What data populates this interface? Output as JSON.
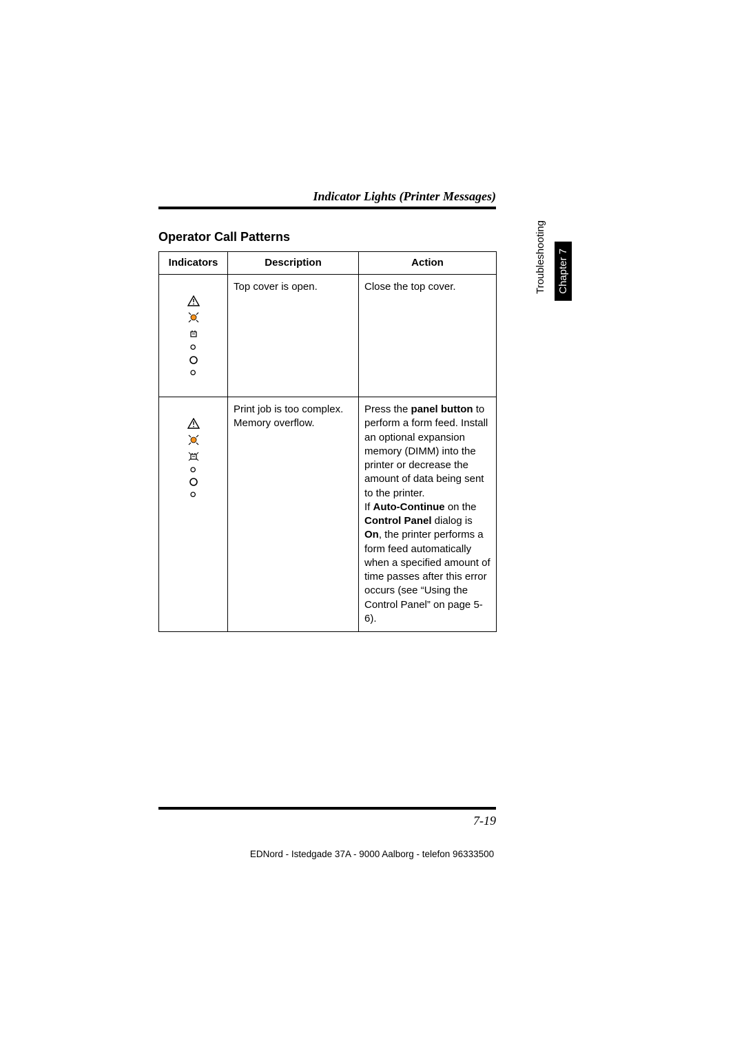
{
  "header": {
    "running_title": "Indicator Lights (Printer Messages)"
  },
  "section": {
    "title": "Operator Call Patterns"
  },
  "table": {
    "columns": [
      "Indicators",
      "Description",
      "Action"
    ],
    "rows": [
      {
        "indicators": {
          "triangle": "outline",
          "ring_blink": true,
          "toner": "outline",
          "led1": "off",
          "led2": "off-large",
          "led3": "off"
        },
        "description": "Top cover is open.",
        "action_parts": [
          {
            "text": "Close the top cover.",
            "bold": false
          }
        ]
      },
      {
        "indicators": {
          "triangle": "outline",
          "ring_blink": true,
          "toner": "blink",
          "led1": "off",
          "led2": "off-large",
          "led3": "off"
        },
        "description_lines": [
          "Print job is too complex.",
          "Memory overflow."
        ],
        "action_parts": [
          {
            "text": "Press the ",
            "bold": false
          },
          {
            "text": "panel button",
            "bold": true
          },
          {
            "text": " to perform a form feed. Install an optional expansion memory (DIMM) into the printer or decrease the amount of data being sent to the printer.",
            "bold": false
          },
          {
            "br": true
          },
          {
            "text": "If ",
            "bold": false
          },
          {
            "text": "Auto-Continue",
            "bold": true
          },
          {
            "text": " on the ",
            "bold": false
          },
          {
            "text": "Control Panel",
            "bold": true
          },
          {
            "text": " dialog is ",
            "bold": false
          },
          {
            "text": "On",
            "bold": true
          },
          {
            "text": ", the printer performs a form feed automatically when a specified amount of time passes after this error occurs (see “Using the Control Panel” on page 5-6).",
            "bold": false
          }
        ]
      }
    ]
  },
  "side_tabs": {
    "light": "Troubleshooting",
    "dark": "Chapter 7"
  },
  "footer": {
    "page_num": "7-19",
    "imprint": "EDNord - Istedgade 37A - 9000 Aalborg - telefon 96333500"
  },
  "style": {
    "colors": {
      "text": "#000000",
      "bg": "#ffffff",
      "rule": "#000000",
      "tab_dark_bg": "#000000",
      "tab_dark_fg": "#ffffff"
    },
    "fonts": {
      "body_size_pt": 11,
      "header_size_pt": 13,
      "section_title_size_pt": 13
    }
  }
}
